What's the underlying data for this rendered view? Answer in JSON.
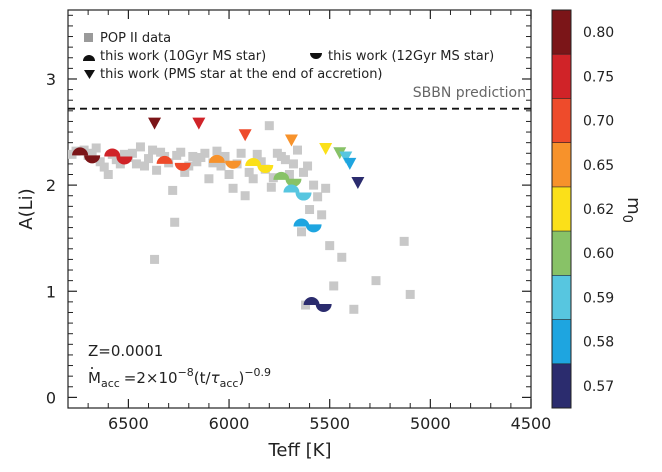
{
  "chart_data": {
    "type": "scatter",
    "xlabel": "Teff [K]",
    "ylabel": "A(Li)",
    "x_reversed": true,
    "xlim": [
      6800,
      4500
    ],
    "ylim": [
      -0.1,
      3.65
    ],
    "xticks": [
      6500,
      6000,
      5500,
      5000,
      4500
    ],
    "yticks": [
      0,
      1,
      2,
      3
    ],
    "grid": false,
    "legend_position": "top-left",
    "legend": {
      "pop2": "POP II data",
      "ms10": "this work (10Gyr MS star)",
      "ms12": "this work (12Gyr MS star)",
      "pms": "this work (PMS star at the end of accretion)"
    },
    "sbbn": {
      "value": 2.72,
      "label": "SBBN prediction"
    },
    "annotations": {
      "z": "Z=0.0001",
      "mdot_lhs": "M",
      "mdot_sub": "acc",
      "mdot_rhs": "=2×10",
      "mdot_exp": "−8",
      "mdot_paren": "(t/",
      "mdot_tau": "τ",
      "mdot_tau_sub": "acc",
      "mdot_close": ")",
      "mdot_exp2": "−0.9"
    },
    "colorbar": {
      "label": "m",
      "label_sub": "0",
      "colors": [
        "#2b2c6e",
        "#1ea5e0",
        "#57c6e0",
        "#88c267",
        "#fbe019",
        "#f7922b",
        "#ee4b2b",
        "#d02328",
        "#7b1518"
      ],
      "labels": [
        "0.57",
        "0.58",
        "0.59",
        "0.60",
        "0.62",
        "0.65",
        "0.70",
        "0.75",
        "0.80"
      ]
    },
    "pop2_points": [
      [
        6780,
        2.29
      ],
      [
        6760,
        2.32
      ],
      [
        6720,
        2.33
      ],
      [
        6700,
        2.28
      ],
      [
        6680,
        2.3
      ],
      [
        6660,
        2.35
      ],
      [
        6640,
        2.22
      ],
      [
        6620,
        2.17
      ],
      [
        6600,
        2.1
      ],
      [
        6580,
        2.29
      ],
      [
        6560,
        2.24
      ],
      [
        6540,
        2.2
      ],
      [
        6520,
        2.29
      ],
      [
        6500,
        2.26
      ],
      [
        6480,
        2.3
      ],
      [
        6460,
        2.2
      ],
      [
        6440,
        2.36
      ],
      [
        6420,
        2.18
      ],
      [
        6400,
        2.25
      ],
      [
        6380,
        2.33
      ],
      [
        6370,
        1.3
      ],
      [
        6360,
        2.14
      ],
      [
        6340,
        2.31
      ],
      [
        6320,
        2.27
      ],
      [
        6300,
        2.21
      ],
      [
        6280,
        1.95
      ],
      [
        6270,
        1.65
      ],
      [
        6260,
        2.28
      ],
      [
        6240,
        2.31
      ],
      [
        6220,
        2.12
      ],
      [
        6200,
        2.18
      ],
      [
        6180,
        2.27
      ],
      [
        6160,
        2.22
      ],
      [
        6140,
        2.26
      ],
      [
        6120,
        2.3
      ],
      [
        6100,
        2.06
      ],
      [
        6080,
        2.21
      ],
      [
        6060,
        2.32
      ],
      [
        6040,
        2.18
      ],
      [
        6020,
        2.27
      ],
      [
        6000,
        2.1
      ],
      [
        5980,
        1.97
      ],
      [
        5960,
        2.2
      ],
      [
        5940,
        2.3
      ],
      [
        5920,
        1.9
      ],
      [
        5900,
        2.12
      ],
      [
        5880,
        2.06
      ],
      [
        5860,
        2.29
      ],
      [
        5840,
        2.22
      ],
      [
        5820,
        2.15
      ],
      [
        5800,
        2.56
      ],
      [
        5790,
        1.98
      ],
      [
        5780,
        2.07
      ],
      [
        5760,
        2.3
      ],
      [
        5740,
        2.27
      ],
      [
        5720,
        2.24
      ],
      [
        5700,
        2.1
      ],
      [
        5680,
        2.2
      ],
      [
        5660,
        2.33
      ],
      [
        5640,
        1.56
      ],
      [
        5630,
        2.12
      ],
      [
        5620,
        0.87
      ],
      [
        5610,
        2.18
      ],
      [
        5600,
        1.77
      ],
      [
        5580,
        2.0
      ],
      [
        5560,
        1.89
      ],
      [
        5540,
        1.72
      ],
      [
        5520,
        1.97
      ],
      [
        5500,
        1.43
      ],
      [
        5480,
        1.05
      ],
      [
        5440,
        1.32
      ],
      [
        5380,
        0.83
      ],
      [
        5270,
        1.1
      ],
      [
        5130,
        1.47
      ],
      [
        5100,
        0.97
      ]
    ],
    "ms_points": [
      {
        "teff": 6740,
        "ali": 2.28,
        "m0": "0.80"
      },
      {
        "teff": 6680,
        "ali": 2.28,
        "m0": "0.80"
      },
      {
        "teff": 6580,
        "ali": 2.27,
        "m0": "0.75"
      },
      {
        "teff": 6520,
        "ali": 2.27,
        "m0": "0.75"
      },
      {
        "teff": 6320,
        "ali": 2.2,
        "m0": "0.70"
      },
      {
        "teff": 6230,
        "ali": 2.21,
        "m0": "0.70"
      },
      {
        "teff": 6060,
        "ali": 2.21,
        "m0": "0.65"
      },
      {
        "teff": 5980,
        "ali": 2.23,
        "m0": "0.65"
      },
      {
        "teff": 5880,
        "ali": 2.18,
        "m0": "0.62"
      },
      {
        "teff": 5820,
        "ali": 2.19,
        "m0": "0.62"
      },
      {
        "teff": 5740,
        "ali": 2.05,
        "m0": "0.60"
      },
      {
        "teff": 5680,
        "ali": 2.06,
        "m0": "0.60"
      },
      {
        "teff": 5690,
        "ali": 1.93,
        "m0": "0.59"
      },
      {
        "teff": 5630,
        "ali": 1.93,
        "m0": "0.59"
      },
      {
        "teff": 5640,
        "ali": 1.61,
        "m0": "0.58"
      },
      {
        "teff": 5580,
        "ali": 1.63,
        "m0": "0.58"
      },
      {
        "teff": 5590,
        "ali": 0.87,
        "m0": "0.57"
      },
      {
        "teff": 5530,
        "ali": 0.88,
        "m0": "0.57"
      }
    ],
    "pms_points": [
      {
        "teff": 6370,
        "ali": 2.58,
        "m0": "0.80"
      },
      {
        "teff": 6150,
        "ali": 2.58,
        "m0": "0.75"
      },
      {
        "teff": 5920,
        "ali": 2.47,
        "m0": "0.70"
      },
      {
        "teff": 5690,
        "ali": 2.42,
        "m0": "0.65"
      },
      {
        "teff": 5520,
        "ali": 2.34,
        "m0": "0.62"
      },
      {
        "teff": 5450,
        "ali": 2.3,
        "m0": "0.60"
      },
      {
        "teff": 5420,
        "ali": 2.26,
        "m0": "0.59"
      },
      {
        "teff": 5400,
        "ali": 2.2,
        "m0": "0.58"
      },
      {
        "teff": 5360,
        "ali": 2.02,
        "m0": "0.57"
      }
    ]
  }
}
